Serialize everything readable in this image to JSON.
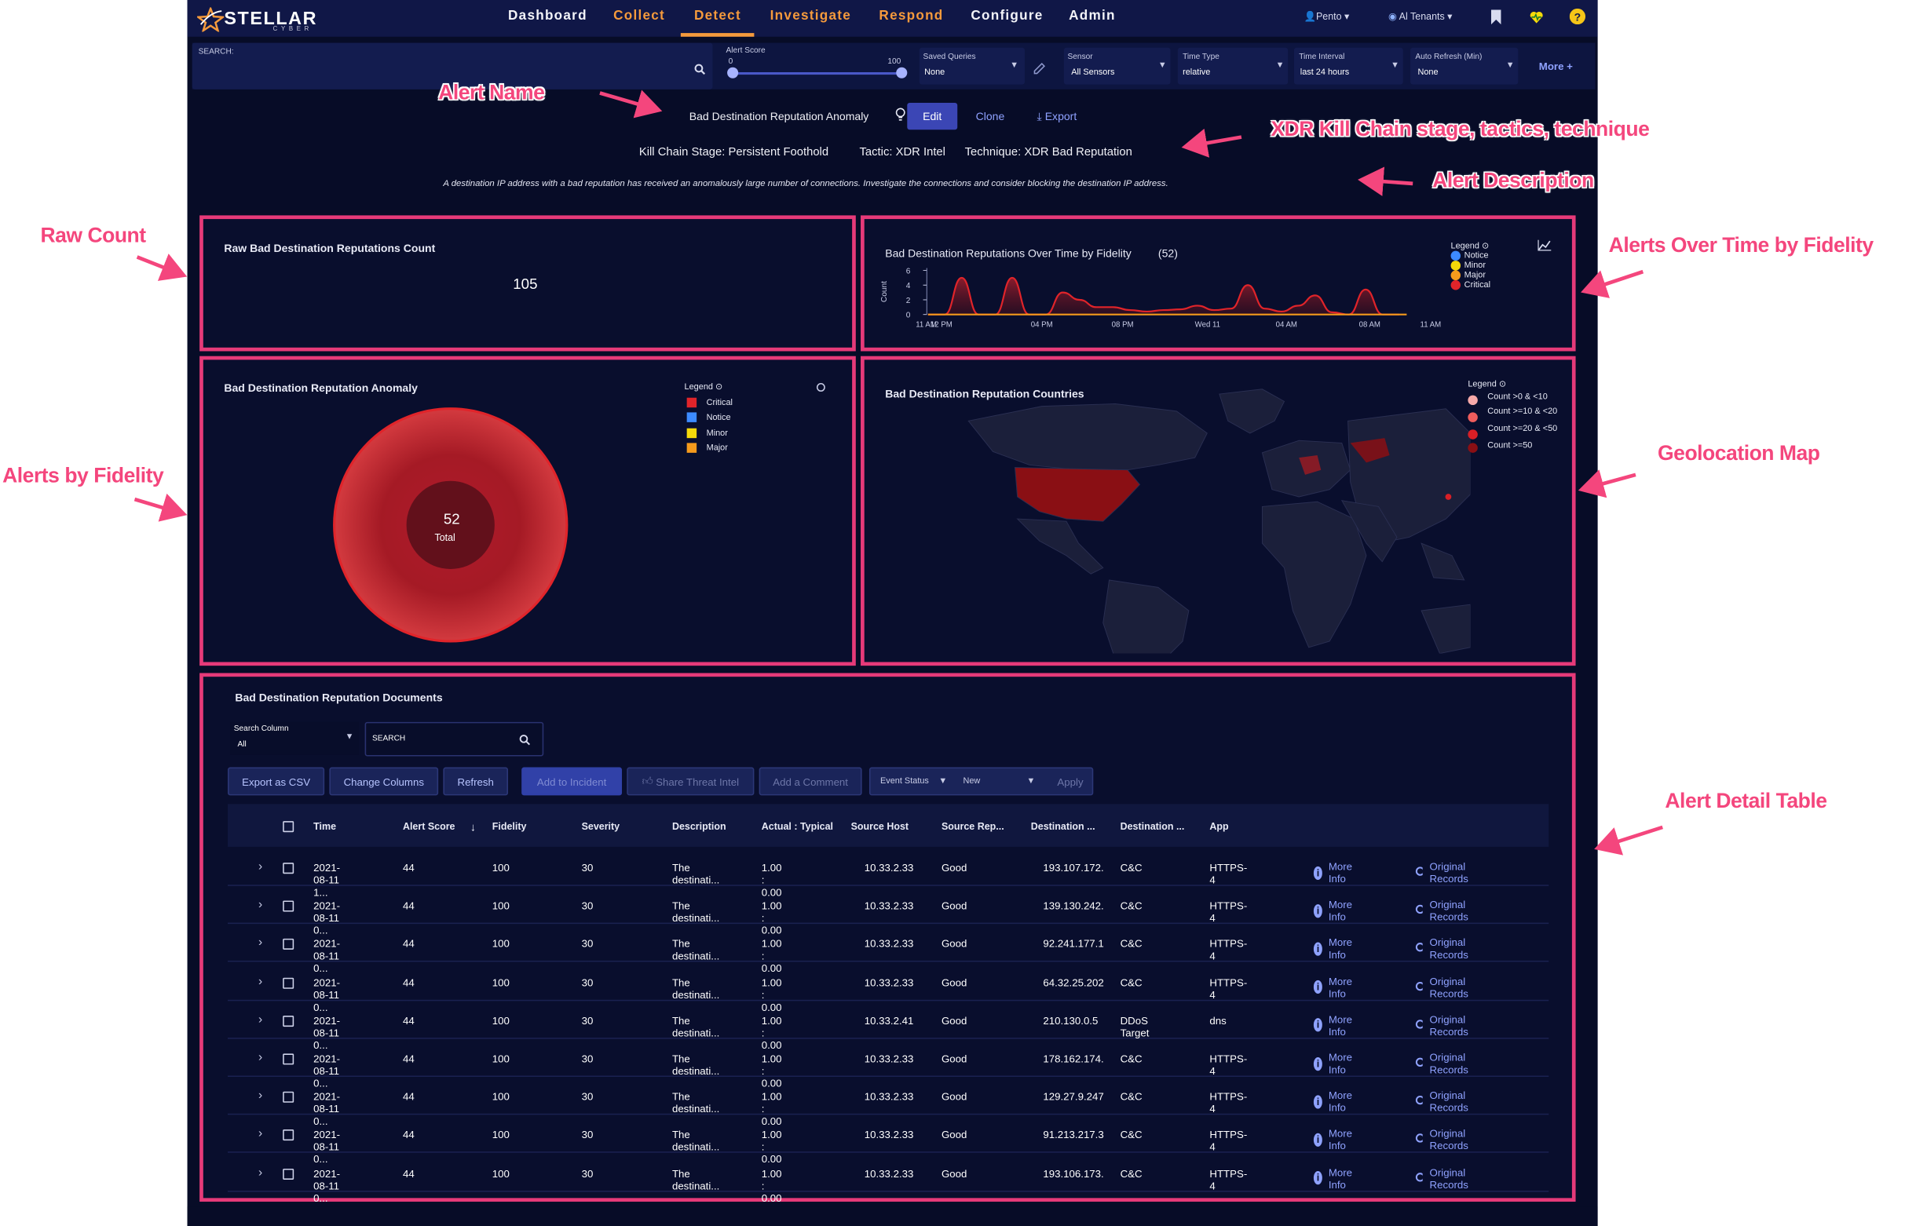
{
  "nav": {
    "logo_text": "STELLAR",
    "logo_sub": "CYBER",
    "items": [
      {
        "label": "Dashboard",
        "color": "#f2f3f8"
      },
      {
        "label": "Collect",
        "color": "#f59a3c"
      },
      {
        "label": "Detect",
        "color": "#f59a3c"
      },
      {
        "label": "Investigate",
        "color": "#f59a3c"
      },
      {
        "label": "Respond",
        "color": "#f59a3c"
      },
      {
        "label": "Configure",
        "color": "#f2f3f8"
      },
      {
        "label": "Admin",
        "color": "#f2f3f8"
      }
    ],
    "user": "Pento ▾",
    "tenants": "Al Tenants ▾"
  },
  "filter": {
    "search_label": "SEARCH:",
    "alert_score": {
      "label": "Alert Score",
      "min": "0",
      "max": "100"
    },
    "saved_queries": {
      "label": "Saved Queries",
      "value": "None"
    },
    "sensor": {
      "label": "Sensor",
      "value": "All Sensors"
    },
    "time_type": {
      "label": "Time Type",
      "value": "relative"
    },
    "time_interval": {
      "label": "Time Interval",
      "value": "last 24 hours"
    },
    "auto_refresh": {
      "label": "Auto Refresh (Min)",
      "value": "None"
    },
    "more": "More +"
  },
  "alert": {
    "name": "Bad Destination Reputation Anomaly",
    "edit": "Edit",
    "clone": "Clone",
    "export": "Export",
    "kill_chain": "Kill Chain Stage: Persistent Foothold",
    "tactic": "Tactic: XDR Intel",
    "technique": "Technique: XDR Bad Reputation",
    "description": "A destination IP address with a bad reputation has received an anomalously large number of connections. Investigate the connections and consider blocking the destination IP address."
  },
  "raw_count": {
    "title": "Raw Bad Destination Reputations Count",
    "value": "105"
  },
  "over_time": {
    "title": "Bad Destination Reputations Over Time by Fidelity",
    "count": "(52)",
    "legend_title": "Legend",
    "legend": [
      {
        "name": "Notice",
        "color": "#3d8bff"
      },
      {
        "name": "Minor",
        "color": "#f5d90a"
      },
      {
        "name": "Major",
        "color": "#f59a1c"
      },
      {
        "name": "Critical",
        "color": "#e0242a"
      }
    ]
  },
  "fidelity_panel": {
    "title": "Bad Destination Reputation Anomaly",
    "legend_title": "Legend",
    "legend": [
      {
        "name": "Critical",
        "color": "#e0242a"
      },
      {
        "name": "Notice",
        "color": "#3d8bff"
      },
      {
        "name": "Minor",
        "color": "#f5d90a"
      },
      {
        "name": "Major",
        "color": "#f59a1c"
      }
    ],
    "total": "52",
    "total_label": "Total"
  },
  "geo_panel": {
    "title": "Bad Destination Reputation Countries",
    "legend_title": "Legend",
    "legend": [
      {
        "name": "Count >0 & <10",
        "color": "#f6a9a9"
      },
      {
        "name": "Count >=10 & <20",
        "color": "#ef5d5d"
      },
      {
        "name": "Count >=20 & <50",
        "color": "#d81f26"
      },
      {
        "name": "Count >=50",
        "color": "#8a0f14"
      }
    ]
  },
  "chart_data": {
    "type": "area",
    "title": "Bad Destination Reputations Over Time by Fidelity",
    "ylabel": "Count",
    "xlabel": "",
    "ylim": [
      0,
      6
    ],
    "y_ticks": [
      "0",
      "2",
      "4",
      "6"
    ],
    "x_ticks": [
      "11 AM",
      "12 PM",
      "04 PM",
      "08 PM",
      "Wed 11",
      "04 AM",
      "08 AM",
      "11 AM"
    ],
    "series": [
      {
        "name": "Critical",
        "values": [
          0,
          0,
          5,
          0,
          0,
          5,
          0,
          0,
          3,
          2,
          1,
          1,
          0.6,
          0.4,
          0.6,
          0.7,
          1.2,
          0.6,
          0.8,
          4,
          0.8,
          0.4,
          1.2,
          2.6,
          0.3,
          0,
          3.4,
          0,
          0
        ]
      }
    ],
    "legend": "top-right"
  },
  "documents": {
    "title": "Bad Destination Reputation Documents",
    "search_column_label": "Search Column",
    "search_column_value": "All",
    "search_placeholder": "SEARCH",
    "buttons": {
      "export_csv": "Export as CSV",
      "change_columns": "Change Columns",
      "refresh": "Refresh",
      "add_incident": "Add to Incident",
      "share_threat": "Share Threat Intel",
      "add_comment": "Add a Comment",
      "event_status": "Event Status",
      "status_value": "New",
      "apply": "Apply"
    },
    "columns": [
      "Time",
      "Alert Score",
      "Fidelity",
      "Severity",
      "Description",
      "Actual : Typical",
      "Source Host",
      "Source Rep...",
      "Destination ...",
      "Destination ...",
      "App"
    ],
    "more_info": "More Info",
    "original_records": "Original Records",
    "rows": [
      {
        "time": "2021-08-11 1...",
        "score": "44",
        "fidelity": "100",
        "severity": "30",
        "desc": "The destinati...",
        "actual": "1.00 : 0.00",
        "src": "10.33.2.33",
        "srcrep": "Good",
        "dst": "193.107.172.",
        "dstrep": "C&C",
        "app": "HTTPS-4"
      },
      {
        "time": "2021-08-11 0...",
        "score": "44",
        "fidelity": "100",
        "severity": "30",
        "desc": "The destinati...",
        "actual": "1.00 : 0.00",
        "src": "10.33.2.33",
        "srcrep": "Good",
        "dst": "139.130.242.",
        "dstrep": "C&C",
        "app": "HTTPS-4"
      },
      {
        "time": "2021-08-11 0...",
        "score": "44",
        "fidelity": "100",
        "severity": "30",
        "desc": "The destinati...",
        "actual": "1.00 : 0.00",
        "src": "10.33.2.33",
        "srcrep": "Good",
        "dst": "92.241.177.1",
        "dstrep": "C&C",
        "app": "HTTPS-4"
      },
      {
        "time": "2021-08-11 0...",
        "score": "44",
        "fidelity": "100",
        "severity": "30",
        "desc": "The destinati...",
        "actual": "1.00 : 0.00",
        "src": "10.33.2.33",
        "srcrep": "Good",
        "dst": "64.32.25.202",
        "dstrep": "C&C",
        "app": "HTTPS-4"
      },
      {
        "time": "2021-08-11 0...",
        "score": "44",
        "fidelity": "100",
        "severity": "30",
        "desc": "The destinati...",
        "actual": "1.00 : 0.00",
        "src": "10.33.2.41",
        "srcrep": "Good",
        "dst": "210.130.0.5",
        "dstrep": "DDoS Target",
        "app": "dns"
      },
      {
        "time": "2021-08-11 0...",
        "score": "44",
        "fidelity": "100",
        "severity": "30",
        "desc": "The destinati...",
        "actual": "1.00 : 0.00",
        "src": "10.33.2.33",
        "srcrep": "Good",
        "dst": "178.162.174.",
        "dstrep": "C&C",
        "app": "HTTPS-4"
      },
      {
        "time": "2021-08-11 0...",
        "score": "44",
        "fidelity": "100",
        "severity": "30",
        "desc": "The destinati...",
        "actual": "1.00 : 0.00",
        "src": "10.33.2.33",
        "srcrep": "Good",
        "dst": "129.27.9.247",
        "dstrep": "C&C",
        "app": "HTTPS-4"
      },
      {
        "time": "2021-08-11 0...",
        "score": "44",
        "fidelity": "100",
        "severity": "30",
        "desc": "The destinati...",
        "actual": "1.00 : 0.00",
        "src": "10.33.2.33",
        "srcrep": "Good",
        "dst": "91.213.217.3",
        "dstrep": "C&C",
        "app": "HTTPS-4"
      },
      {
        "time": "2021-08-11 0...",
        "score": "44",
        "fidelity": "100",
        "severity": "30",
        "desc": "The destinati...",
        "actual": "1.00 : 0.00",
        "src": "10.33.2.33",
        "srcrep": "Good",
        "dst": "193.106.173.",
        "dstrep": "C&C",
        "app": "HTTPS-4"
      }
    ]
  },
  "annotations": {
    "alert_name": "Alert Name",
    "kill_chain": "XDR Kill Chain stage, tactics, technique",
    "alert_description": "Alert Description",
    "raw_count": "Raw Count",
    "alerts_over_time": "Alerts  Over Time by Fidelity",
    "alerts_by_fidelity": "Alerts by Fidelity",
    "geolocation_map": "Geolocation Map",
    "alert_detail_table": "Alert Detail Table"
  }
}
